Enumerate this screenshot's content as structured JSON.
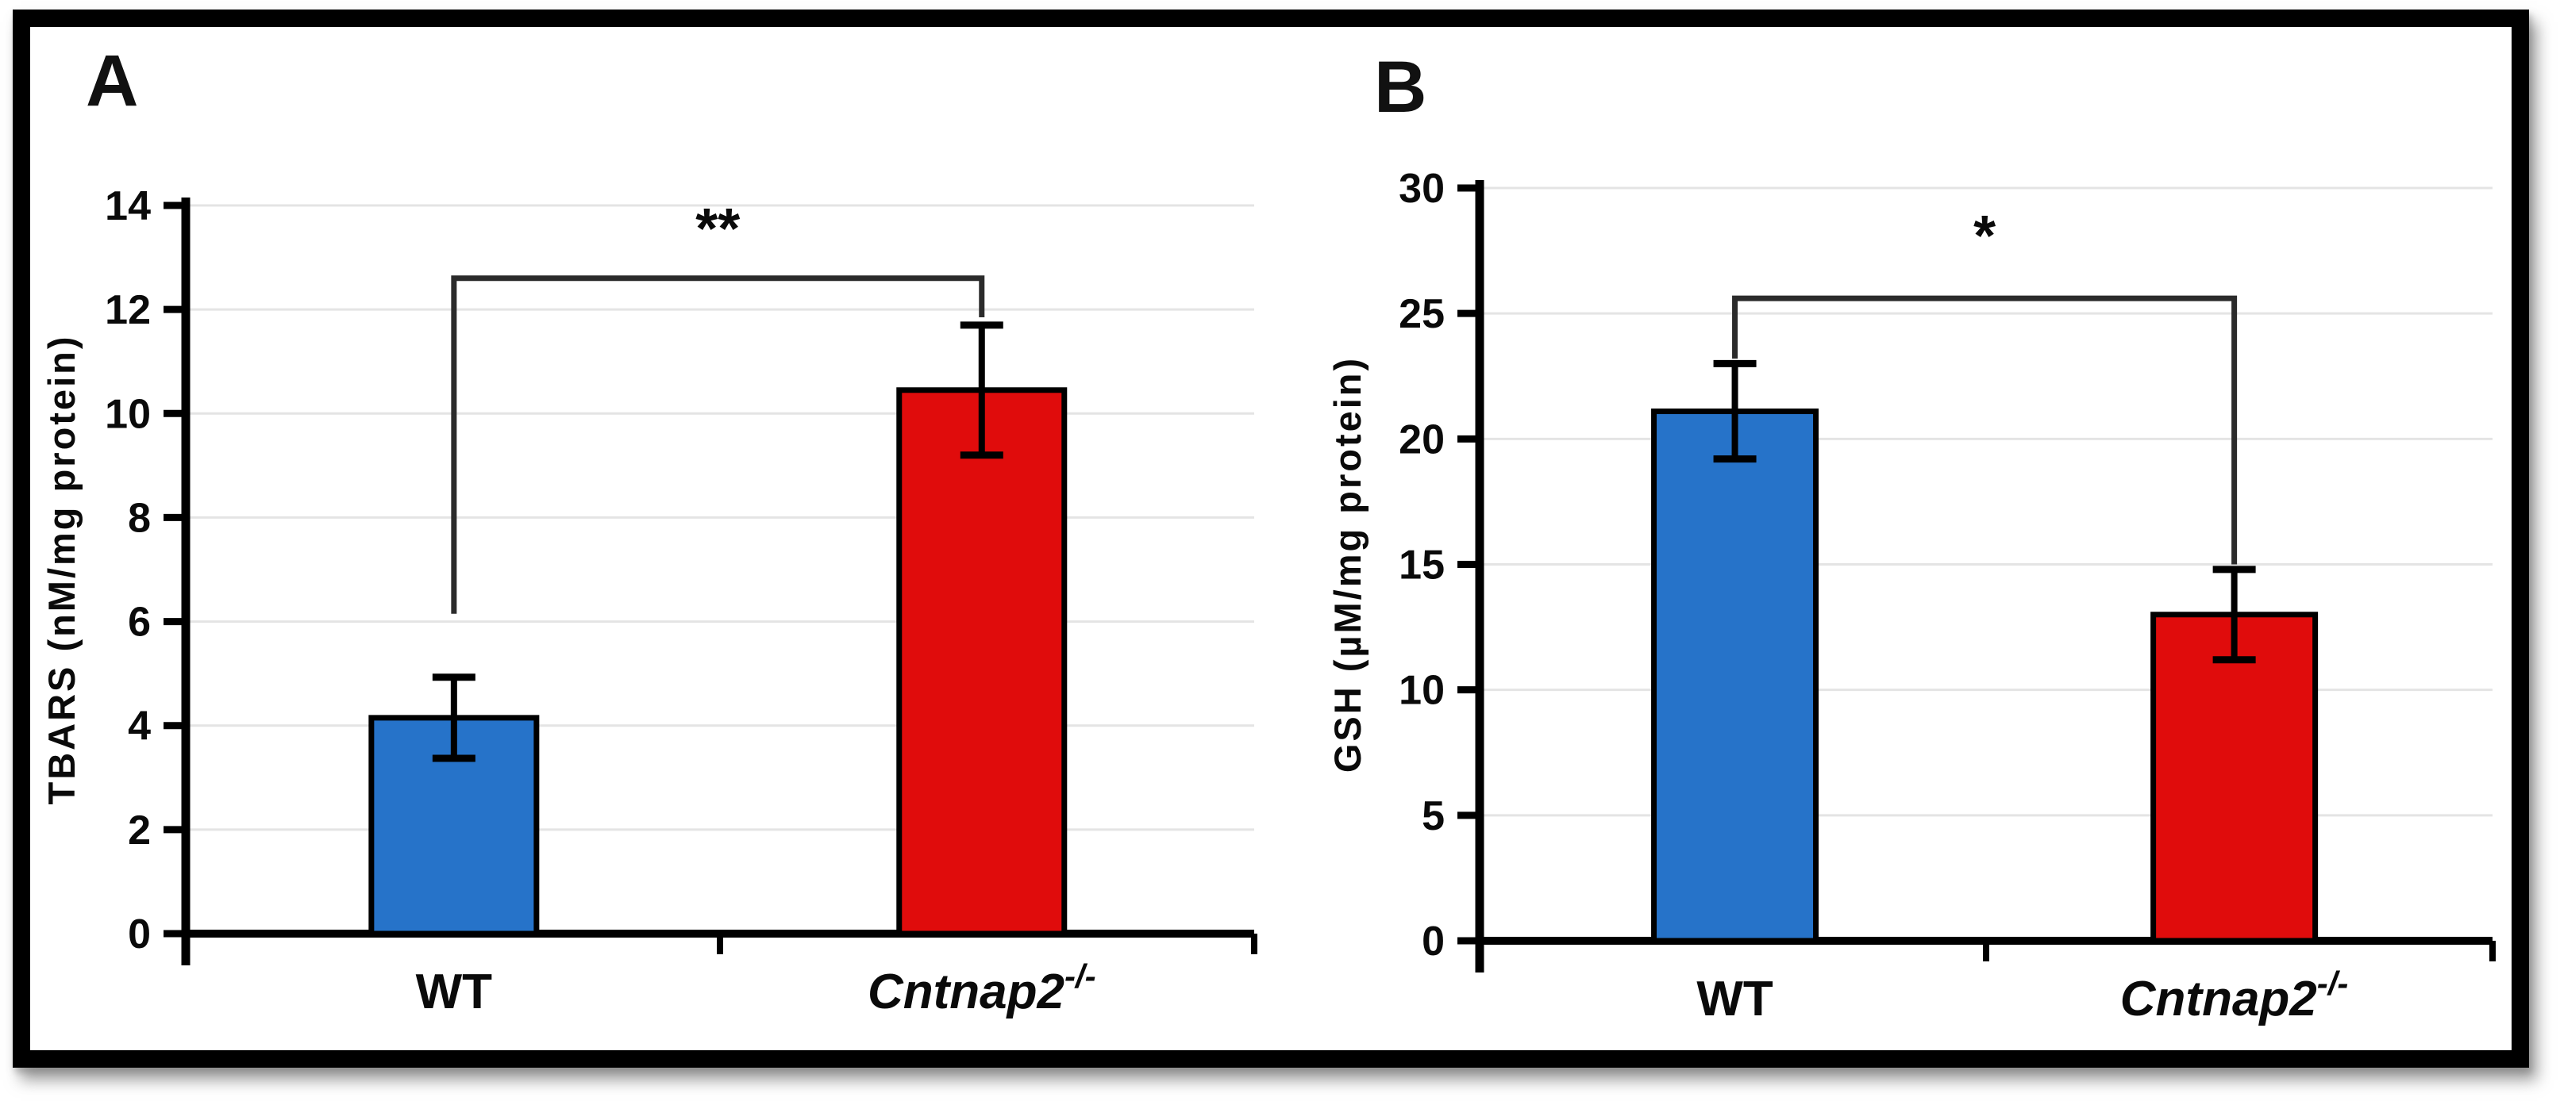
{
  "figure": {
    "frame_border_color": "#000000",
    "background": "#ffffff",
    "panel_letters": [
      "A",
      "B"
    ]
  },
  "colors": {
    "bar_blue": "#2673C9",
    "bar_red": "#E00C0C",
    "bar_outline": "#000000",
    "grid": "#E4E4E4",
    "axis": "#000000",
    "bracket": "#2B2B2B",
    "text": "#0A0A0A"
  },
  "chart_data": [
    {
      "type": "bar",
      "panel_label": "A",
      "title": "",
      "xlabel": "",
      "ylabel": "TBARS (nM/mg protein)",
      "ylim": [
        0,
        14
      ],
      "yticks": [
        0,
        2,
        4,
        6,
        8,
        10,
        12,
        14
      ],
      "grid": true,
      "legend_position": "none",
      "categories": [
        {
          "text": "WT",
          "italic": false,
          "superscript": ""
        },
        {
          "text": "Cntnap2",
          "italic": true,
          "superscript": "-/-"
        }
      ],
      "series": [
        {
          "name": "TBARS",
          "values": [
            4.15,
            10.45
          ],
          "errors": [
            0.78,
            1.25
          ]
        }
      ],
      "bar_colors": [
        "#2673C9",
        "#E00C0C"
      ],
      "significance": {
        "label": "**",
        "bracket_level": 12.6,
        "left_drop_level": 6.15,
        "right_drop_level": 11.85
      }
    },
    {
      "type": "bar",
      "panel_label": "B",
      "title": "",
      "xlabel": "",
      "ylabel": "GSH (µM/mg protein)",
      "ylim": [
        0,
        30
      ],
      "yticks": [
        0,
        5,
        10,
        15,
        20,
        25,
        30
      ],
      "grid": true,
      "legend_position": "none",
      "categories": [
        {
          "text": "WT",
          "italic": false,
          "superscript": ""
        },
        {
          "text": "Cntnap2",
          "italic": true,
          "superscript": "-/-"
        }
      ],
      "series": [
        {
          "name": "GSH",
          "values": [
            21.1,
            13.0
          ],
          "errors": [
            1.9,
            1.8
          ]
        }
      ],
      "bar_colors": [
        "#2673C9",
        "#E00C0C"
      ],
      "significance": {
        "label": "*",
        "bracket_level": 25.6,
        "left_drop_level": 23.2,
        "right_drop_level": 15.0
      }
    }
  ]
}
